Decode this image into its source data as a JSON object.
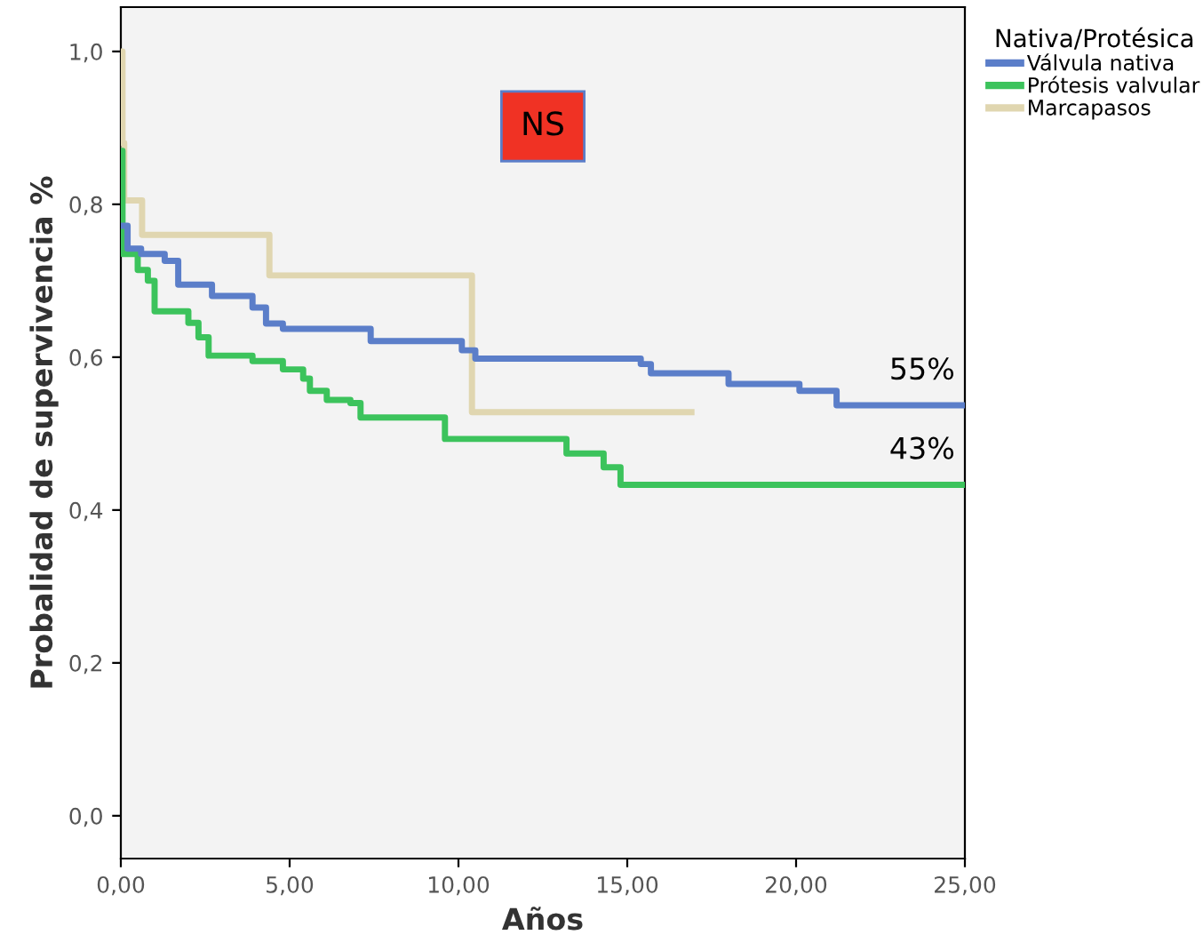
{
  "chart_data": {
    "type": "step",
    "xlabel": "Años",
    "ylabel": "Probalidad de supervivencia %",
    "legend_title": "Nativa/Protésica",
    "legend": "top right",
    "xlim": [
      0,
      25
    ],
    "xticks": [
      {
        "value": 0,
        "label": "0,00"
      },
      {
        "value": 5,
        "label": "5,00"
      },
      {
        "value": 10,
        "label": "10,00"
      },
      {
        "value": 15,
        "label": "15,00"
      },
      {
        "value": 20,
        "label": "20,00"
      },
      {
        "value": 25,
        "label": "25,00"
      }
    ],
    "ylim": [
      -0.056,
      1.058
    ],
    "yticks": [
      {
        "value": 0,
        "label": "0,0"
      },
      {
        "value": 0.2,
        "label": "0,2"
      },
      {
        "value": 0.4,
        "label": "0,4"
      },
      {
        "value": 0.6,
        "label": "0,6"
      },
      {
        "value": 0.8,
        "label": "0,8"
      },
      {
        "value": 1.0,
        "label": "1,0"
      }
    ],
    "grid": false,
    "series": [
      {
        "name": "Válvula nativa",
        "color": "#5b7ec9",
        "x": [
          0,
          0.2,
          0.6,
          1.3,
          1.7,
          2.7,
          3.9,
          4.3,
          4.8,
          7.4,
          10.1,
          10.5,
          15.4,
          15.7,
          18.0,
          20.1,
          21.2,
          25
        ],
        "values": [
          0.772,
          0.742,
          0.735,
          0.726,
          0.695,
          0.68,
          0.665,
          0.644,
          0.637,
          0.621,
          0.609,
          0.598,
          0.591,
          0.579,
          0.565,
          0.556,
          0.537,
          0.537
        ]
      },
      {
        "name": "Prótesis valvular",
        "color": "#3cc35c",
        "x": [
          0,
          0.05,
          0.5,
          0.8,
          1.0,
          2.0,
          2.3,
          2.6,
          3.9,
          4.8,
          5.4,
          5.6,
          6.1,
          6.8,
          7.1,
          9.6,
          13.2,
          14.3,
          14.8,
          25
        ],
        "values": [
          0.87,
          0.735,
          0.714,
          0.7,
          0.66,
          0.645,
          0.626,
          0.602,
          0.595,
          0.584,
          0.572,
          0.556,
          0.544,
          0.54,
          0.521,
          0.493,
          0.474,
          0.456,
          0.433,
          0.433
        ]
      },
      {
        "name": "Marcapasos",
        "color": "#e0d6b0",
        "x": [
          0,
          0.05,
          0.1,
          0.63,
          4.4,
          10.4,
          16.9
        ],
        "values": [
          1.0,
          0.88,
          0.805,
          0.76,
          0.707,
          0.528,
          0.528
        ]
      }
    ],
    "annotations": [
      "NS",
      {
        "text": "55%",
        "x": 25,
        "y": 0.537
      },
      {
        "text": "43%",
        "x": 25,
        "y": 0.433
      }
    ]
  }
}
